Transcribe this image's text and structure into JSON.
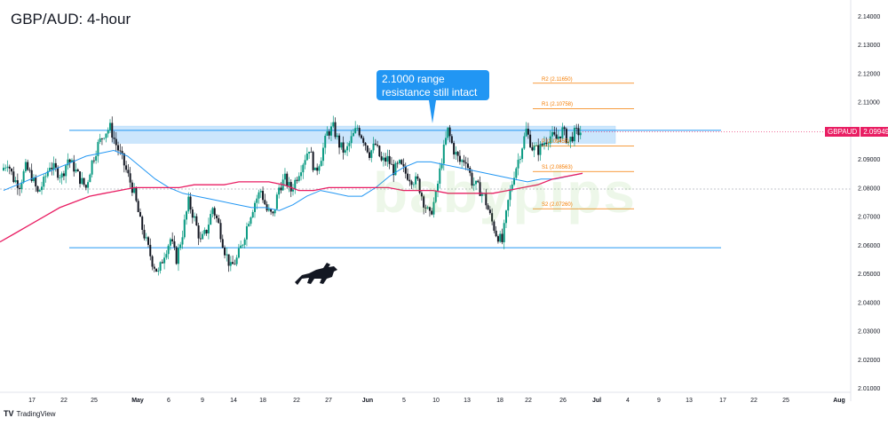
{
  "header": {
    "title": "GBP/AUD: 4-hour"
  },
  "branding": {
    "tv_text": "TradingView",
    "watermark": "babypips"
  },
  "callout": {
    "line1": "2.1000 range",
    "line2": "resistance still intact"
  },
  "price_tag": {
    "symbol": "GBPAUD",
    "value": "2.09949"
  },
  "colors": {
    "up_candle": "#089981",
    "down_candle": "#131722",
    "ma_fast": "#2196f3",
    "ma_slow": "#e91e63",
    "pivot": "#f57c00",
    "range_line": "#2196f3",
    "zone_fill": "#bbdefb"
  },
  "chart_data": {
    "type": "candlestick",
    "title": "GBP/AUD: 4-hour",
    "y_axis": {
      "ticks": [
        "2.14000",
        "2.13000",
        "2.12000",
        "2.11000",
        "2.10000",
        "2.09000",
        "2.08000",
        "2.07000",
        "2.06000",
        "2.05000",
        "2.04000",
        "2.03000",
        "2.02000",
        "2.01000"
      ],
      "ylim": [
        2.01,
        2.14
      ]
    },
    "x_axis": {
      "ticks": [
        "17",
        "22",
        "25",
        "May",
        "6",
        "9",
        "14",
        "18",
        "22",
        "27",
        "Jun",
        "5",
        "10",
        "13",
        "18",
        "22",
        "26",
        "Jul",
        "4",
        "9",
        "13",
        "17",
        "22",
        "25",
        "Aug"
      ]
    },
    "resistance_zone": {
      "low": 2.0955,
      "high": 2.1015
    },
    "range_lines": [
      2.1,
      2.059
    ],
    "current_price": 2.09949,
    "pivot_levels": [
      {
        "label": "R2 (2.11650)",
        "value": 2.1165
      },
      {
        "label": "R1 (2.10758)",
        "value": 2.10758
      },
      {
        "label": "P (2.09455)",
        "value": 2.09455
      },
      {
        "label": "S1 (2.08563)",
        "value": 2.08563
      },
      {
        "label": "S2 (2.07260)",
        "value": 2.0726
      }
    ],
    "price_path": [
      2.086,
      2.089,
      2.083,
      2.081,
      2.087,
      2.084,
      2.078,
      2.082,
      2.088,
      2.086,
      2.084,
      2.09,
      2.087,
      2.083,
      2.08,
      2.089,
      2.095,
      2.099,
      2.101,
      2.095,
      2.09,
      2.084,
      2.078,
      2.068,
      2.061,
      2.054,
      2.05,
      2.057,
      2.062,
      2.055,
      2.064,
      2.075,
      2.069,
      2.061,
      2.065,
      2.073,
      2.067,
      2.058,
      2.052,
      2.055,
      2.061,
      2.069,
      2.075,
      2.079,
      2.072,
      2.07,
      2.08,
      2.083,
      2.079,
      2.084,
      2.089,
      2.094,
      2.085,
      2.091,
      2.099,
      2.101,
      2.095,
      2.092,
      2.097,
      2.101,
      2.097,
      2.092,
      2.095,
      2.089,
      2.09,
      2.086,
      2.088,
      2.085,
      2.083,
      2.082,
      2.075,
      2.07,
      2.077,
      2.09,
      2.1,
      2.093,
      2.089,
      2.09,
      2.082,
      2.08,
      2.077,
      2.07,
      2.064,
      2.061,
      2.075,
      2.085,
      2.092,
      2.1,
      2.094,
      2.093,
      2.096,
      2.098,
      2.097,
      2.1,
      2.096,
      2.099,
      2.0995
    ],
    "ma_fast_points": [
      2.079,
      2.081,
      2.083,
      2.085,
      2.087,
      2.089,
      2.091,
      2.092,
      2.093,
      2.091,
      2.087,
      2.083,
      2.08,
      2.078,
      2.077,
      2.076,
      2.075,
      2.074,
      2.073,
      2.073,
      2.072,
      2.074,
      2.077,
      2.079,
      2.078,
      2.077,
      2.077,
      2.08,
      2.084,
      2.087,
      2.089,
      2.089,
      2.088,
      2.087,
      2.086,
      2.085,
      2.084,
      2.083,
      2.082,
      2.083,
      2.083,
      2.084,
      2.085
    ],
    "ma_slow_points": [
      2.061,
      2.064,
      2.067,
      2.07,
      2.073,
      2.075,
      2.077,
      2.078,
      2.079,
      2.08,
      2.08,
      2.08,
      2.08,
      2.081,
      2.081,
      2.081,
      2.082,
      2.082,
      2.082,
      2.081,
      2.079,
      2.079,
      2.08,
      2.08,
      2.08,
      2.08,
      2.08,
      2.079,
      2.079,
      2.079,
      2.078,
      2.078,
      2.078,
      2.078,
      2.079,
      2.08,
      2.081,
      2.083,
      2.084,
      2.085
    ]
  }
}
